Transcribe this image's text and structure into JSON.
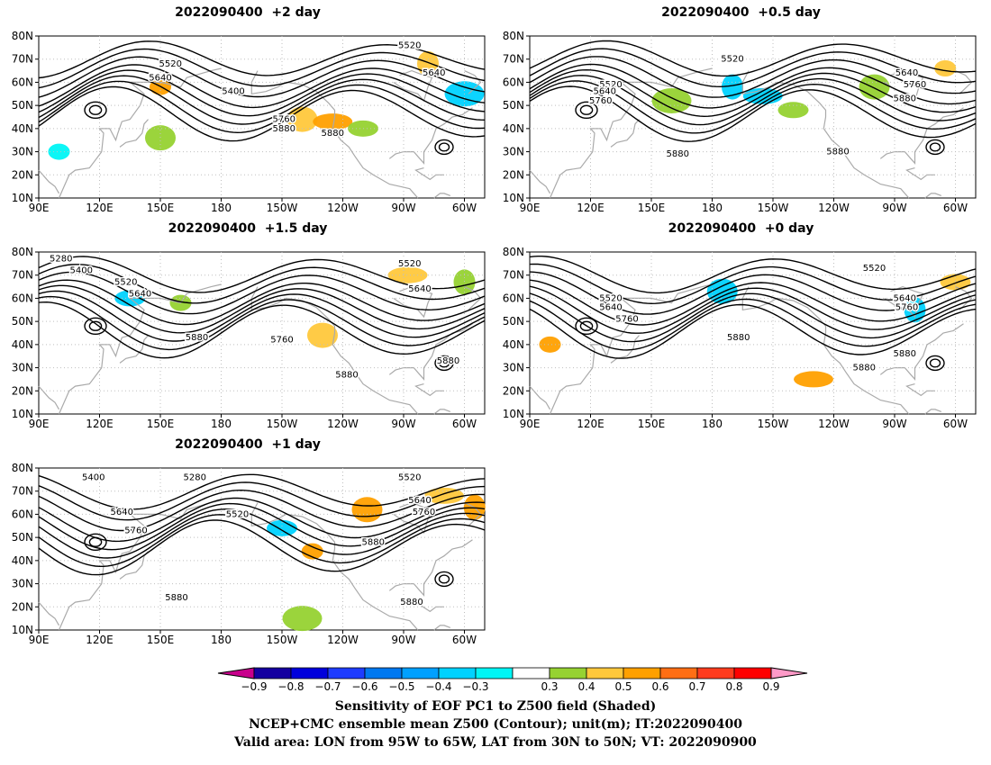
{
  "panels": [
    {
      "title": "2022090400  +2 day",
      "contours": [
        {
          "label": "5520",
          "lon": -87,
          "lat": 76
        },
        {
          "label": "5520",
          "lon": 155,
          "lat": 68
        },
        {
          "label": "5640",
          "lon": 150,
          "lat": 62
        },
        {
          "label": "5400",
          "lon": -174,
          "lat": 56
        },
        {
          "label": "5640",
          "lon": -75,
          "lat": 64
        },
        {
          "label": "5760",
          "lon": -149,
          "lat": 44
        },
        {
          "label": "5880",
          "lon": -149,
          "lat": 40
        },
        {
          "label": "5880",
          "lon": -125,
          "lat": 38
        }
      ],
      "shading": [
        {
          "lon": 150,
          "lat": 58,
          "v": 0.6
        },
        {
          "lon": -140,
          "lat": 44,
          "v": 0.5
        },
        {
          "lon": -125,
          "lat": 43,
          "v": 0.6
        },
        {
          "lon": -78,
          "lat": 68,
          "v": 0.5
        },
        {
          "lon": -110,
          "lat": 40,
          "v": 0.4
        },
        {
          "lon": -60,
          "lat": 55,
          "v": -0.4
        },
        {
          "lon": 100,
          "lat": 30,
          "v": -0.3
        },
        {
          "lon": 150,
          "lat": 36,
          "v": 0.4
        }
      ]
    },
    {
      "title": "2022090400  +0.5 day",
      "contours": [
        {
          "label": "5520",
          "lon": -170,
          "lat": 70
        },
        {
          "label": "5520",
          "lon": 130,
          "lat": 59
        },
        {
          "label": "5640",
          "lon": 127,
          "lat": 56
        },
        {
          "label": "5640",
          "lon": -84,
          "lat": 64
        },
        {
          "label": "5760",
          "lon": -80,
          "lat": 59
        },
        {
          "label": "5760",
          "lon": 125,
          "lat": 52
        },
        {
          "label": "5880",
          "lon": -85,
          "lat": 53
        },
        {
          "label": "5880",
          "lon": 163,
          "lat": 29
        },
        {
          "label": "5880",
          "lon": -118,
          "lat": 30
        }
      ],
      "shading": [
        {
          "lon": -65,
          "lat": 66,
          "v": 0.5
        },
        {
          "lon": -100,
          "lat": 58,
          "v": 0.4
        },
        {
          "lon": -155,
          "lat": 54,
          "v": -0.4
        },
        {
          "lon": -170,
          "lat": 58,
          "v": -0.4
        },
        {
          "lon": -140,
          "lat": 48,
          "v": 0.4
        },
        {
          "lon": 160,
          "lat": 52,
          "v": 0.4
        }
      ]
    },
    {
      "title": "2022090400  +1.5 day",
      "contours": [
        {
          "label": "5280",
          "lon": 101,
          "lat": 77
        },
        {
          "label": "5400",
          "lon": 111,
          "lat": 72
        },
        {
          "label": "5520",
          "lon": 133,
          "lat": 67
        },
        {
          "label": "5640",
          "lon": 140,
          "lat": 62
        },
        {
          "label": "5520",
          "lon": -87,
          "lat": 75
        },
        {
          "label": "5640",
          "lon": -82,
          "lat": 64
        },
        {
          "label": "5880",
          "lon": 168,
          "lat": 43
        },
        {
          "label": "5760",
          "lon": -150,
          "lat": 42
        },
        {
          "label": "5880",
          "lon": -118,
          "lat": 27
        },
        {
          "label": "5880",
          "lon": -68,
          "lat": 33
        }
      ],
      "shading": [
        {
          "lon": 160,
          "lat": 58,
          "v": 0.4
        },
        {
          "lon": -130,
          "lat": 44,
          "v": 0.5
        },
        {
          "lon": -88,
          "lat": 70,
          "v": 0.5
        },
        {
          "lon": -60,
          "lat": 67,
          "v": 0.4
        },
        {
          "lon": 135,
          "lat": 60,
          "v": -0.4
        }
      ]
    },
    {
      "title": "2022090400  +0 day",
      "contours": [
        {
          "label": "5520",
          "lon": -100,
          "lat": 73
        },
        {
          "label": "5520",
          "lon": 130,
          "lat": 60
        },
        {
          "label": "5640",
          "lon": 130,
          "lat": 56
        },
        {
          "label": "5640",
          "lon": -85,
          "lat": 60
        },
        {
          "label": "5760",
          "lon": -84,
          "lat": 56
        },
        {
          "label": "5760",
          "lon": 138,
          "lat": 51
        },
        {
          "label": "5880",
          "lon": -167,
          "lat": 43
        },
        {
          "label": "5880",
          "lon": -105,
          "lat": 30
        },
        {
          "label": "5880",
          "lon": -85,
          "lat": 36
        }
      ],
      "shading": [
        {
          "lon": 100,
          "lat": 40,
          "v": 0.6
        },
        {
          "lon": -175,
          "lat": 63,
          "v": -0.4
        },
        {
          "lon": -130,
          "lat": 25,
          "v": 0.6
        },
        {
          "lon": -80,
          "lat": 55,
          "v": -0.4
        },
        {
          "lon": -60,
          "lat": 67,
          "v": 0.5
        }
      ]
    },
    {
      "title": "2022090400  +1 day",
      "contours": [
        {
          "label": "5400",
          "lon": 117,
          "lat": 76
        },
        {
          "label": "5280",
          "lon": 167,
          "lat": 76
        },
        {
          "label": "5520",
          "lon": -87,
          "lat": 76
        },
        {
          "label": "5640",
          "lon": -82,
          "lat": 66
        },
        {
          "label": "5640",
          "lon": 131,
          "lat": 61
        },
        {
          "label": "5520",
          "lon": -172,
          "lat": 60
        },
        {
          "label": "5760",
          "lon": -80,
          "lat": 61
        },
        {
          "label": "5760",
          "lon": 138,
          "lat": 53
        },
        {
          "label": "5880",
          "lon": -105,
          "lat": 48
        },
        {
          "label": "5880",
          "lon": 158,
          "lat": 24
        },
        {
          "label": "5880",
          "lon": -86,
          "lat": 22
        }
      ],
      "shading": [
        {
          "lon": -135,
          "lat": 44,
          "v": 0.6
        },
        {
          "lon": -108,
          "lat": 62,
          "v": 0.6
        },
        {
          "lon": -70,
          "lat": 68,
          "v": 0.5
        },
        {
          "lon": -55,
          "lat": 63,
          "v": 0.6
        },
        {
          "lon": -150,
          "lat": 54,
          "v": -0.4
        },
        {
          "lon": -140,
          "lat": 15,
          "v": 0.4
        }
      ]
    }
  ],
  "axes": {
    "x_ticks": [
      "90E",
      "120E",
      "150E",
      "180",
      "150W",
      "120W",
      "90W",
      "60W"
    ],
    "y_ticks": [
      "10N",
      "20N",
      "30N",
      "40N",
      "50N",
      "60N",
      "70N",
      "80N"
    ]
  },
  "colorbar": {
    "labels": [
      "-0.9",
      "-0.8",
      "-0.7",
      "-0.6",
      "-0.5",
      "-0.4",
      "-0.3",
      "0.3",
      "0.4",
      "0.5",
      "0.6",
      "0.7",
      "0.8",
      "0.9"
    ],
    "colors": [
      "#c8008c",
      "#1400a0",
      "#0000dc",
      "#1e3cff",
      "#0078f0",
      "#00a0ff",
      "#00d2ff",
      "#00f5f5",
      "#ffffff",
      "#96d232",
      "#ffc83c",
      "#ffa000",
      "#ff6e14",
      "#ff3c1e",
      "#ff0000",
      "#ff9ac8"
    ]
  },
  "colors": {
    "contour": "#000000",
    "coast": "#aaaaaa",
    "grid": "#bfbfbf"
  },
  "footer": {
    "line1": "Sensitivity of EOF PC1 to Z500 field (Shaded)",
    "line2": "NCEP+CMC ensemble mean Z500 (Contour); unit(m); IT:2022090400",
    "line3": "Valid area: LON from 95W to 65W, LAT from 30N to 50N; VT: 2022090900"
  }
}
